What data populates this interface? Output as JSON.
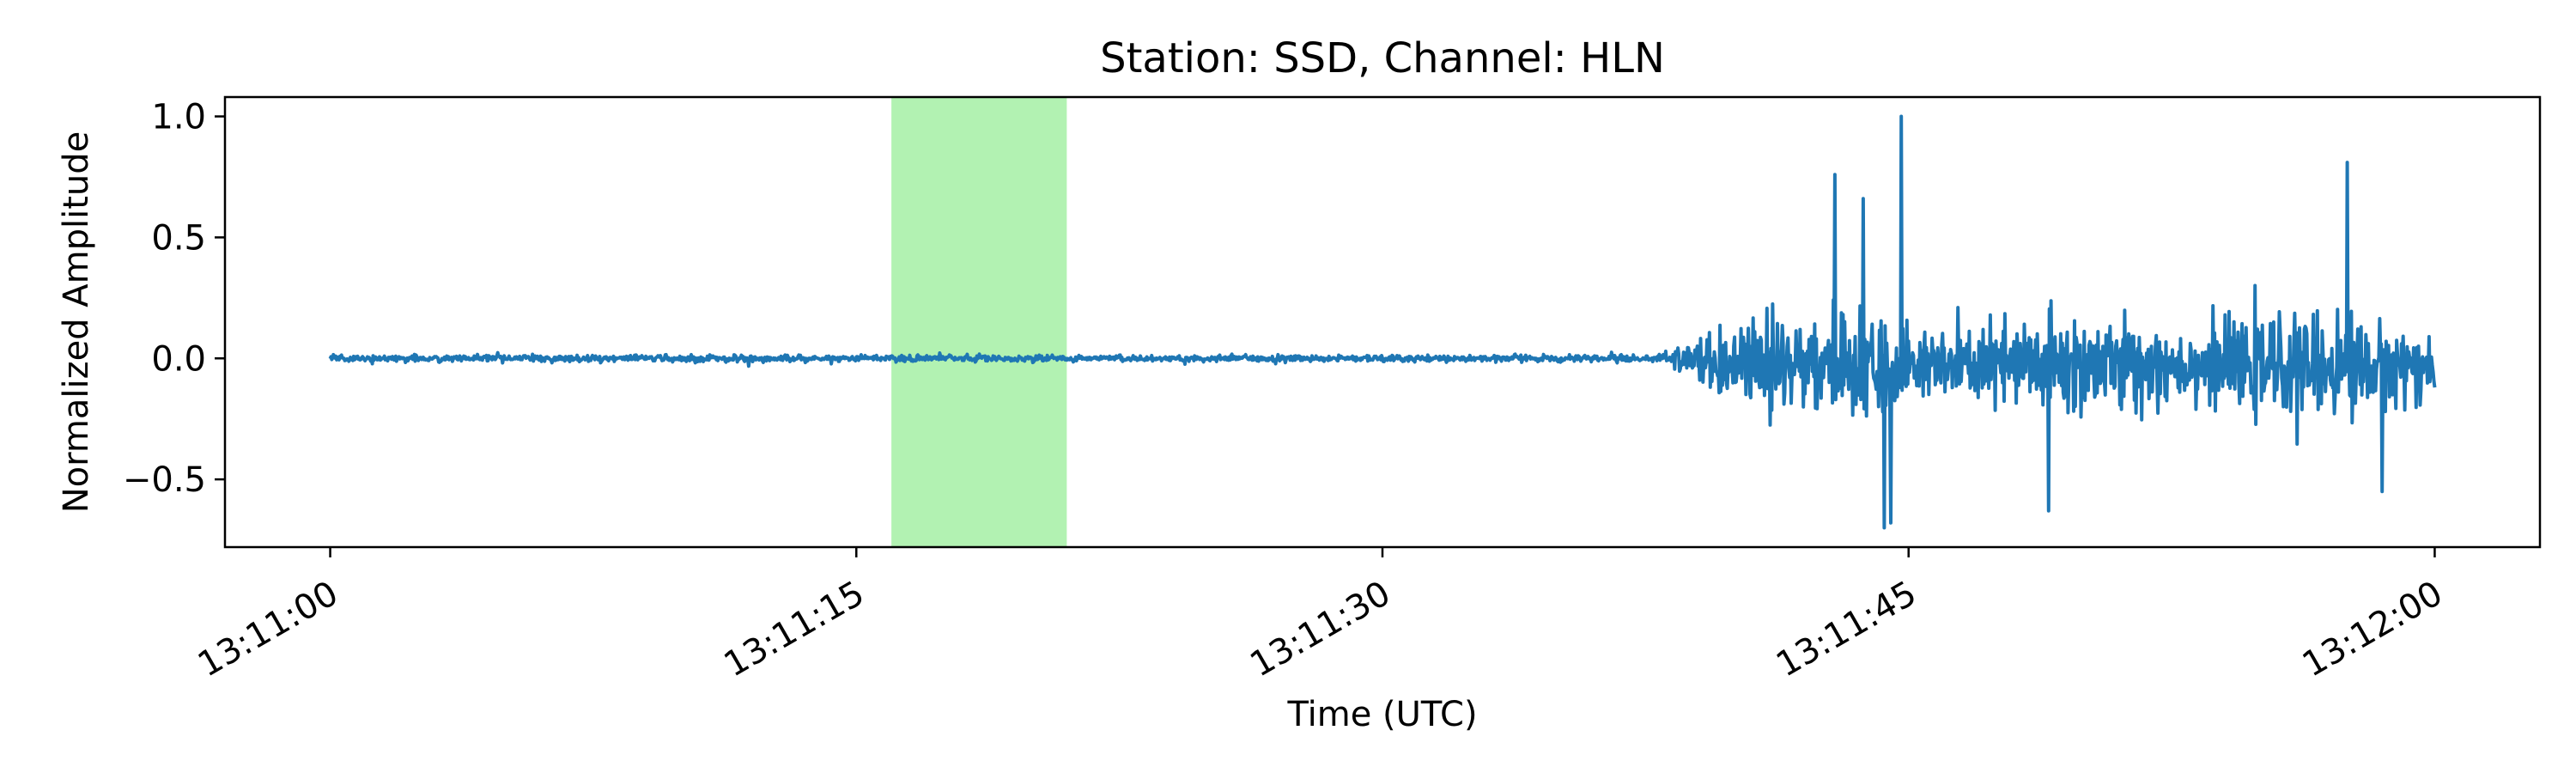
{
  "chart_data": {
    "type": "line",
    "title": "Station: SSD, Channel: HLN",
    "xlabel": "Time (UTC)",
    "ylabel": "Normalized Amplitude",
    "x_range": [
      "13:11:00",
      "13:12:00"
    ],
    "xlim": [
      "13:10:57",
      "13:12:03"
    ],
    "ylim": [
      -0.78,
      1.08
    ],
    "grid": false,
    "legend": "none",
    "x_ticks": [
      "13:11:00",
      "13:11:15",
      "13:11:30",
      "13:11:45",
      "13:12:00"
    ],
    "y_ticks": [
      {
        "value": -0.5,
        "label": "−0.5"
      },
      {
        "value": 0.0,
        "label": "0.0"
      },
      {
        "value": 0.5,
        "label": "0.5"
      },
      {
        "value": 1.0,
        "label": "1.0"
      }
    ],
    "highlight_window": {
      "start": "13:11:16",
      "end": "13:11:21",
      "color": "#b2f2b2"
    },
    "series": [
      {
        "color": "#1f77b4",
        "amplitude_envelope": {
          "pre_event_noise": 0.02,
          "onset_time": "13:11:39",
          "peak_max": 1.0,
          "peak_min": -0.7,
          "peak_time": "13:11:44.8"
        }
      }
    ]
  }
}
